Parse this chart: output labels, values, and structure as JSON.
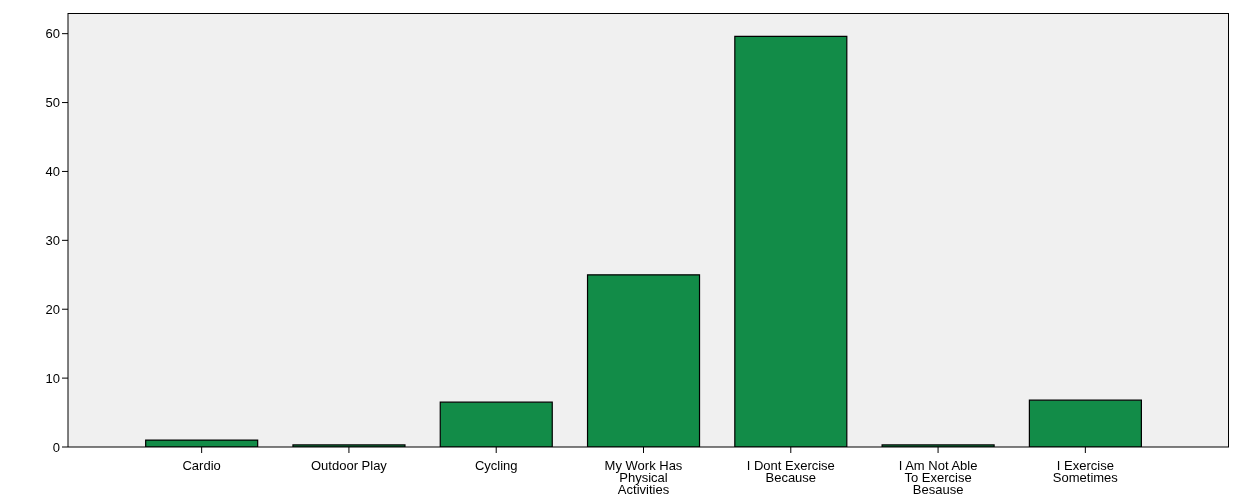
{
  "chart_data": {
    "type": "bar",
    "categories": [
      "Cardio",
      "Outdoor Play",
      "Cycling",
      "My Work Has Physical Activities",
      "I Dont Exercise Because",
      "I Am Not Able To Exercise Besause",
      "I Exercise Sometimes"
    ],
    "values": [
      1.0,
      0.3,
      6.5,
      25.0,
      59.6,
      0.3,
      6.8
    ],
    "color": "#128c48",
    "ylim": [
      0,
      63
    ],
    "yticks": [
      0,
      10,
      20,
      30,
      40,
      50,
      60
    ]
  }
}
